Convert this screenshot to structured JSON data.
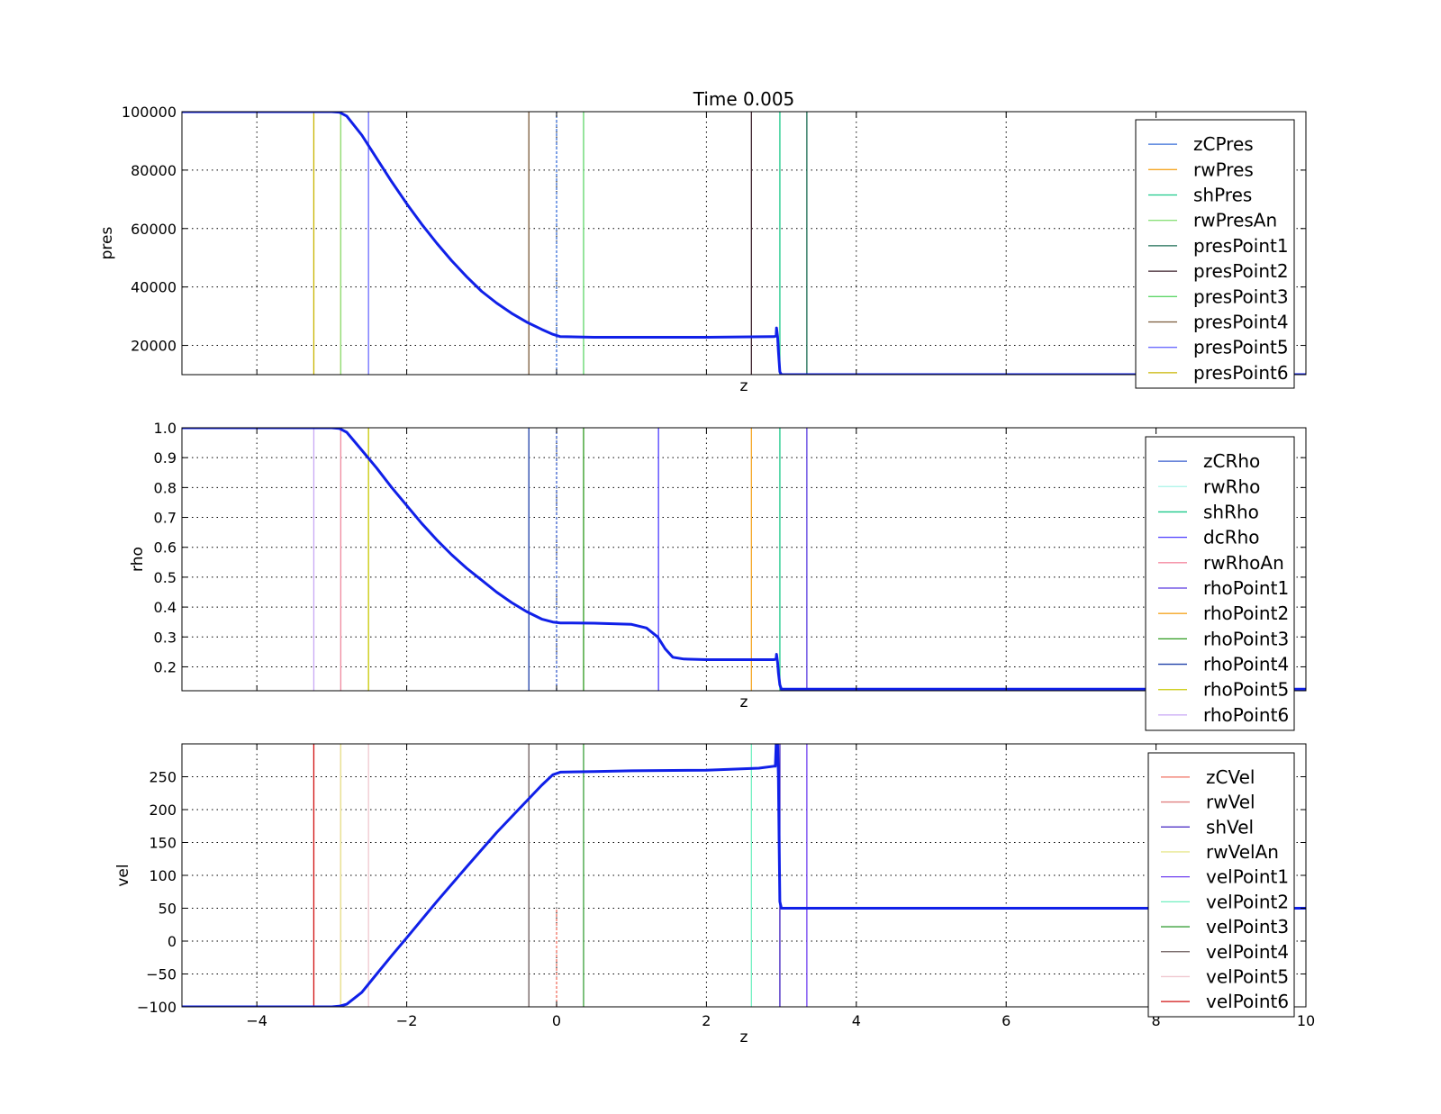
{
  "figure_title": "Time 0.005",
  "chart_data": [
    {
      "type": "line",
      "title": "Time 0.005",
      "xlabel": "z",
      "ylabel": "pres",
      "xlim": [
        -5,
        10
      ],
      "ylim": [
        10000,
        100000
      ],
      "yticks": [
        20000,
        40000,
        60000,
        80000,
        100000
      ],
      "xticks": [
        -4,
        -2,
        0,
        2,
        4,
        6,
        8,
        10
      ],
      "show_xtick_labels": false,
      "grid": true,
      "legend_position": "right",
      "series": [
        {
          "name": "zCPres",
          "color": "#3a6fd8",
          "x": [
            0.0,
            0.0
          ],
          "y": [
            10000,
            100000
          ],
          "dashed": true
        },
        {
          "name": "rwPres",
          "color": "#f5a623",
          "x": [
            -2.88,
            -2.88
          ],
          "y": [
            10000,
            100000
          ]
        },
        {
          "name": "shPres",
          "color": "#1cc98a",
          "x": [
            2.98,
            2.98
          ],
          "y": [
            10000,
            100000
          ]
        },
        {
          "name": "rwPresAn",
          "color": "#8be07a",
          "x": [
            -2.88,
            -2.88
          ],
          "y": [
            10000,
            100000
          ]
        },
        {
          "name": "presPoint1",
          "color": "#1a6b52",
          "x": [
            3.34,
            3.34
          ],
          "y": [
            10000,
            100000
          ]
        },
        {
          "name": "presPoint2",
          "color": "#3a1f2a",
          "x": [
            2.6,
            2.6
          ],
          "y": [
            10000,
            100000
          ]
        },
        {
          "name": "presPoint3",
          "color": "#5fd66a",
          "x": [
            0.36,
            0.36
          ],
          "y": [
            10000,
            100000
          ]
        },
        {
          "name": "presPoint4",
          "color": "#7a5a3a",
          "x": [
            -0.37,
            -0.37
          ],
          "y": [
            10000,
            100000
          ]
        },
        {
          "name": "presPoint5",
          "color": "#6b6bff",
          "x": [
            -2.51,
            -2.51
          ],
          "y": [
            10000,
            100000
          ]
        },
        {
          "name": "presPoint6",
          "color": "#c8b400",
          "x": [
            -3.24,
            -3.24
          ],
          "y": [
            10000,
            100000
          ]
        }
      ],
      "profile": {
        "color": "#1020e8",
        "x": [
          -5,
          -3.0,
          -2.9,
          -2.8,
          -2.6,
          -2.4,
          -2.2,
          -2.0,
          -1.8,
          -1.6,
          -1.4,
          -1.2,
          -1.0,
          -0.8,
          -0.6,
          -0.4,
          -0.2,
          -0.05,
          0.05,
          0.5,
          1.0,
          2.0,
          2.9,
          2.93,
          2.935,
          2.95,
          2.96,
          2.98,
          3.0,
          10
        ],
        "y": [
          100000,
          100000,
          99800,
          98500,
          92000,
          84000,
          76000,
          68500,
          61500,
          55000,
          49000,
          43500,
          38500,
          34500,
          31000,
          28000,
          25500,
          23800,
          23000,
          22800,
          22800,
          22800,
          23000,
          23200,
          26000,
          23000,
          18000,
          11000,
          10000,
          10000
        ]
      }
    },
    {
      "type": "line",
      "xlabel": "z",
      "ylabel": "rho",
      "xlim": [
        -5,
        10
      ],
      "ylim": [
        0.12,
        1.0
      ],
      "yticks": [
        0.2,
        0.3,
        0.4,
        0.5,
        0.6,
        0.7,
        0.8,
        0.9,
        1.0
      ],
      "ytick_labels": [
        "0.2",
        "0.3",
        "0.4",
        "0.5",
        "0.6",
        "0.7",
        "0.8",
        "0.9",
        "1.0"
      ],
      "xticks": [
        -4,
        -2,
        0,
        2,
        4,
        6,
        8,
        10
      ],
      "show_xtick_labels": false,
      "grid": true,
      "legend_position": "right",
      "series": [
        {
          "name": "zCRho",
          "color": "#3a5fcd",
          "x": [
            0.0,
            0.0
          ],
          "y": [
            0.12,
            1.0
          ],
          "dashed": true
        },
        {
          "name": "rwRho",
          "color": "#a8f5e8",
          "x": [
            -2.88,
            -2.88
          ],
          "y": [
            0.12,
            1.0
          ]
        },
        {
          "name": "shRho",
          "color": "#1cc98a",
          "x": [
            2.98,
            2.98
          ],
          "y": [
            0.12,
            1.0
          ]
        },
        {
          "name": "dcRho",
          "color": "#4b3bff",
          "x": [
            1.36,
            1.36
          ],
          "y": [
            0.12,
            1.0
          ]
        },
        {
          "name": "rwRhoAn",
          "color": "#f58aa0",
          "x": [
            -2.88,
            -2.88
          ],
          "y": [
            0.12,
            1.0
          ]
        },
        {
          "name": "rhoPoint1",
          "color": "#5a3be0",
          "x": [
            3.34,
            3.34
          ],
          "y": [
            0.12,
            1.0
          ]
        },
        {
          "name": "rhoPoint2",
          "color": "#f5a623",
          "x": [
            2.6,
            2.6
          ],
          "y": [
            0.12,
            1.0
          ]
        },
        {
          "name": "rhoPoint3",
          "color": "#2e9a1e",
          "x": [
            0.36,
            0.36
          ],
          "y": [
            0.12,
            1.0
          ]
        },
        {
          "name": "rhoPoint4",
          "color": "#1e3fa8",
          "x": [
            -0.37,
            -0.37
          ],
          "y": [
            0.12,
            1.0
          ]
        },
        {
          "name": "rhoPoint5",
          "color": "#c8c800",
          "x": [
            -2.51,
            -2.51
          ],
          "y": [
            0.12,
            1.0
          ]
        },
        {
          "name": "rhoPoint6",
          "color": "#c8a8f5",
          "x": [
            -3.24,
            -3.24
          ],
          "y": [
            0.12,
            1.0
          ]
        }
      ],
      "profile": {
        "color": "#1020e8",
        "x": [
          -5,
          -3.0,
          -2.9,
          -2.8,
          -2.6,
          -2.4,
          -2.2,
          -2.0,
          -1.8,
          -1.6,
          -1.4,
          -1.2,
          -1.0,
          -0.8,
          -0.6,
          -0.4,
          -0.2,
          -0.05,
          0.05,
          0.5,
          1.0,
          1.2,
          1.35,
          1.45,
          1.55,
          1.7,
          2.0,
          2.9,
          2.93,
          2.935,
          2.95,
          2.96,
          2.98,
          3.0,
          10
        ],
        "y": [
          1.0,
          1.0,
          0.998,
          0.985,
          0.925,
          0.865,
          0.8,
          0.74,
          0.68,
          0.625,
          0.575,
          0.53,
          0.49,
          0.45,
          0.415,
          0.385,
          0.36,
          0.35,
          0.347,
          0.346,
          0.342,
          0.33,
          0.3,
          0.26,
          0.232,
          0.226,
          0.224,
          0.224,
          0.226,
          0.242,
          0.215,
          0.18,
          0.14,
          0.125,
          0.125
        ]
      }
    },
    {
      "type": "line",
      "xlabel": "z",
      "ylabel": "vel",
      "xlim": [
        -5,
        10
      ],
      "ylim": [
        -100,
        300
      ],
      "yticks": [
        -100,
        -50,
        0,
        50,
        100,
        150,
        200,
        250
      ],
      "ytick_labels": [
        "−100",
        "−50",
        "0",
        "50",
        "100",
        "150",
        "200",
        "250"
      ],
      "xticks": [
        -4,
        -2,
        0,
        2,
        4,
        6,
        8,
        10
      ],
      "xtick_labels": [
        "−4",
        "−2",
        "0",
        "2",
        "4",
        "6",
        "8",
        "10"
      ],
      "show_xtick_labels": true,
      "grid": true,
      "legend_position": "right",
      "series": [
        {
          "name": "zCVel",
          "color": "#f07060",
          "x": [
            0.0,
            0.0
          ],
          "y": [
            -100,
            50
          ],
          "dashed": true
        },
        {
          "name": "rwVel",
          "color": "#e08080",
          "x": [
            -2.88,
            -2.88
          ],
          "y": [
            -100,
            300
          ]
        },
        {
          "name": "shVel",
          "color": "#4020c0",
          "x": [
            2.98,
            2.98
          ],
          "y": [
            -100,
            300
          ]
        },
        {
          "name": "rwVelAn",
          "color": "#e8e890",
          "x": [
            -2.88,
            -2.88
          ],
          "y": [
            -100,
            300
          ]
        },
        {
          "name": "velPoint1",
          "color": "#7040f0",
          "x": [
            3.34,
            3.34
          ],
          "y": [
            -100,
            300
          ]
        },
        {
          "name": "velPoint2",
          "color": "#70f0c0",
          "x": [
            2.6,
            2.6
          ],
          "y": [
            -100,
            300
          ]
        },
        {
          "name": "velPoint3",
          "color": "#3aa03a",
          "x": [
            0.36,
            0.36
          ],
          "y": [
            -100,
            300
          ]
        },
        {
          "name": "velPoint4",
          "color": "#6a5a5a",
          "x": [
            -0.37,
            -0.37
          ],
          "y": [
            -100,
            300
          ]
        },
        {
          "name": "velPoint5",
          "color": "#f0c8d0",
          "x": [
            -2.51,
            -2.51
          ],
          "y": [
            -100,
            300
          ]
        },
        {
          "name": "velPoint6",
          "color": "#d01010",
          "x": [
            -3.24,
            -3.24
          ],
          "y": [
            -100,
            300
          ]
        }
      ],
      "profile": {
        "color": "#1020e8",
        "x": [
          -5,
          -3.0,
          -2.9,
          -2.8,
          -2.6,
          -2.4,
          -2.2,
          -2.0,
          -1.6,
          -1.2,
          -0.8,
          -0.4,
          -0.2,
          -0.05,
          0.05,
          0.5,
          1.0,
          2.0,
          2.7,
          2.9,
          2.92,
          2.93,
          2.95,
          2.96,
          2.97,
          2.98,
          3.0,
          10
        ],
        "y": [
          -100,
          -100,
          -99,
          -96,
          -78,
          -50,
          -22,
          5,
          60,
          113,
          165,
          213,
          237,
          253,
          257,
          258,
          259,
          260,
          263,
          266,
          266,
          300,
          300,
          250,
          150,
          60,
          50,
          50
        ]
      }
    }
  ]
}
